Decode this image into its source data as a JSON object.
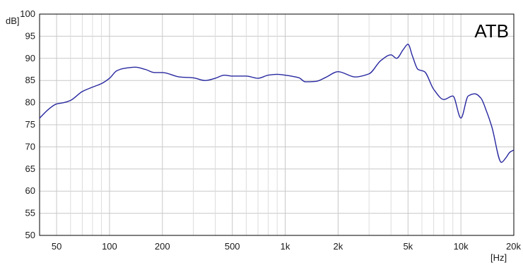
{
  "chart_data": {
    "type": "line",
    "title": "ATB",
    "xlabel": "[Hz]",
    "ylabel": "dB]",
    "x_scale": "log",
    "xlim": [
      40,
      20000
    ],
    "ylim": [
      50,
      100
    ],
    "y_ticks": [
      "100",
      "95",
      "90",
      "85",
      "80",
      "75",
      "70",
      "65",
      "60",
      "55",
      "50"
    ],
    "x_ticks": [
      {
        "value": 50,
        "label": "50"
      },
      {
        "value": 100,
        "label": "100"
      },
      {
        "value": 200,
        "label": "200"
      },
      {
        "value": 500,
        "label": "500"
      },
      {
        "value": 1000,
        "label": "1k"
      },
      {
        "value": 2000,
        "label": "2k"
      },
      {
        "value": 5000,
        "label": "5k"
      },
      {
        "value": 10000,
        "label": "10k"
      },
      {
        "value": 20000,
        "label": "20k"
      }
    ],
    "grid": true,
    "line_color": "#2828a0",
    "series": [
      {
        "x": [
          40,
          45,
          50,
          55,
          60,
          70,
          80,
          90,
          100,
          110,
          120,
          140,
          160,
          180,
          200,
          250,
          300,
          350,
          400,
          450,
          500,
          600,
          700,
          800,
          900,
          1000,
          1200,
          1300,
          1500,
          1700,
          2000,
          2500,
          3000,
          3500,
          4000,
          4300,
          4700,
          5000,
          5300,
          5700,
          6200,
          7000,
          8000,
          9000,
          10000,
          11000,
          12000,
          13000,
          14000,
          15000,
          17000,
          18000,
          19000,
          20000
        ],
        "y": [
          76.5,
          78.5,
          79.7,
          80.0,
          80.5,
          82.5,
          83.5,
          84.3,
          85.5,
          87.2,
          87.7,
          88.0,
          87.5,
          86.8,
          86.8,
          85.8,
          85.6,
          85.0,
          85.5,
          86.2,
          86.0,
          86.0,
          85.5,
          86.2,
          86.4,
          86.2,
          85.6,
          84.7,
          84.8,
          85.7,
          87.0,
          85.8,
          86.5,
          89.5,
          90.8,
          90.0,
          92.0,
          93.2,
          90.5,
          87.5,
          87.0,
          83.0,
          80.7,
          81.5,
          76.5,
          81.5,
          82.0,
          81.0,
          78.0,
          74.5,
          66.5,
          67.5,
          68.8,
          69.3
        ]
      }
    ]
  }
}
